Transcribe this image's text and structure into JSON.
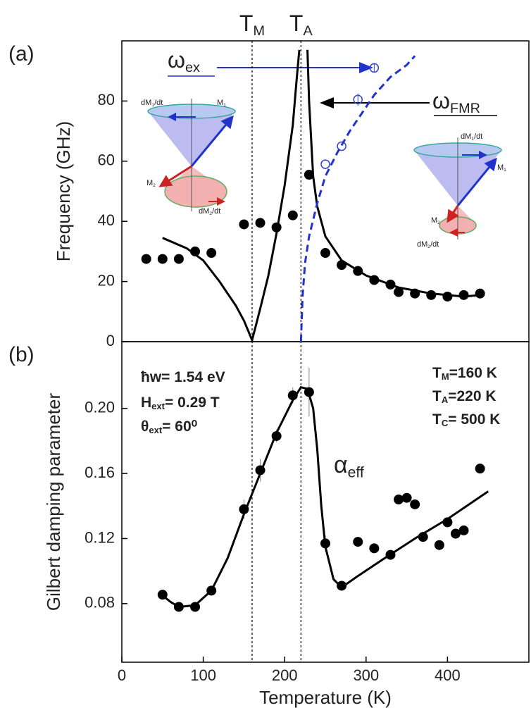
{
  "chart_data": [
    {
      "type": "line",
      "label": "(a)",
      "y_label": "Frequency (GHz)",
      "xlim": [
        0,
        500
      ],
      "ylim": [
        0,
        100
      ],
      "yticks": [
        0,
        20,
        40,
        60,
        80
      ],
      "vlines": [
        {
          "value": 160,
          "parts": [
            {
              "t": "T"
            },
            {
              "t": "M",
              "sub": true
            }
          ]
        },
        {
          "value": 220,
          "parts": [
            {
              "t": "T"
            },
            {
              "t": "A",
              "sub": true
            }
          ]
        }
      ],
      "series": [
        {
          "style": "dots",
          "color": "#000000",
          "x": [
            30,
            50,
            70,
            90,
            110,
            150,
            170,
            190,
            210,
            230,
            250,
            270,
            290,
            310,
            330,
            340,
            360,
            380,
            400,
            420,
            440
          ],
          "values": [
            27.5,
            27.5,
            27.5,
            30,
            29.5,
            39,
            39.5,
            38,
            42,
            55.5,
            29.5,
            25.5,
            23.5,
            20.5,
            19,
            16.5,
            16,
            15.5,
            15,
            15.5,
            16
          ]
        },
        {
          "style": "open",
          "color": "#3344cc",
          "x": [
            250,
            270,
            290,
            310
          ],
          "values": [
            59,
            65,
            80.5,
            91
          ],
          "errors": [
            null,
            null,
            2,
            1.5
          ]
        },
        {
          "style": "line",
          "color": "#000000",
          "x": [
            50,
            80,
            100,
            120,
            140,
            150,
            160,
            170,
            180,
            190,
            200,
            210,
            215,
            218,
            223,
            228,
            230,
            235,
            240,
            250,
            270,
            300,
            340,
            380,
            420,
            440
          ],
          "values": [
            34.5,
            31,
            27,
            20,
            12,
            7,
            0.5,
            11,
            22,
            36,
            52,
            72,
            88,
            97,
            null,
            97,
            80,
            55,
            45,
            35,
            27,
            22,
            18,
            16,
            15,
            15.5
          ]
        },
        {
          "style": "dashed",
          "color": "#2233cc",
          "x": [
            220,
            222,
            225,
            230,
            240,
            250,
            265,
            280,
            295,
            310,
            330,
            350,
            360
          ],
          "values": [
            0,
            15,
            26,
            35,
            46,
            55,
            63,
            70,
            76,
            82,
            88,
            92,
            95
          ]
        }
      ],
      "annotations": [
        {
          "color": "#2233cc",
          "parts": [
            {
              "t": "ω"
            },
            {
              "t": "ex",
              "sub": true
            }
          ]
        },
        {
          "color": "#000000",
          "parts": [
            {
              "t": "ω"
            },
            {
              "t": "FMR",
              "sub": true
            }
          ]
        },
        {
          "color": "#2233cc",
          "parts": [
            {
              "t": "dM"
            },
            {
              "t": "1",
              "sub": true
            },
            {
              "t": "/dt"
            }
          ]
        },
        {
          "color": "#2233cc",
          "parts": [
            {
              "t": "M"
            },
            {
              "t": "1",
              "sub": true
            }
          ]
        },
        {
          "color": "#cc2222",
          "parts": [
            {
              "t": "M"
            },
            {
              "t": "2",
              "sub": true
            }
          ]
        },
        {
          "color": "#cc2222",
          "parts": [
            {
              "t": "dM"
            },
            {
              "t": "2",
              "sub": true
            },
            {
              "t": "/dt"
            }
          ]
        },
        {
          "color": "#2233cc",
          "parts": [
            {
              "t": "dM"
            },
            {
              "t": "1",
              "sub": true
            },
            {
              "t": "/dt"
            }
          ]
        },
        {
          "color": "#2233cc",
          "parts": [
            {
              "t": "M"
            },
            {
              "t": "1",
              "sub": true
            }
          ]
        },
        {
          "color": "#cc2222",
          "parts": [
            {
              "t": "M"
            },
            {
              "t": "2",
              "sub": true
            }
          ]
        },
        {
          "color": "#cc2222",
          "parts": [
            {
              "t": "dM"
            },
            {
              "t": "2",
              "sub": true
            },
            {
              "t": "/dt"
            }
          ]
        }
      ]
    },
    {
      "type": "line",
      "label": "(b)",
      "y_label": "Gilbert damping parameter",
      "x_label": "Temperature (K)",
      "xlim": [
        0,
        500
      ],
      "ylim": [
        0.044,
        0.241
      ],
      "xticks": [
        0,
        100,
        200,
        300,
        400
      ],
      "yticks": [
        0.08,
        0.12,
        0.16,
        {
          "value": 0.2,
          "label": "0.20"
        }
      ],
      "series": [
        {
          "style": "dots",
          "color": "#000000",
          "x": [
            50,
            70,
            90,
            110,
            150,
            170,
            190,
            210,
            230,
            250,
            270,
            290,
            310,
            330,
            340,
            350,
            360,
            370,
            390,
            400,
            410,
            420,
            440
          ],
          "values": [
            0.0855,
            0.078,
            0.078,
            0.088,
            0.138,
            0.162,
            0.183,
            0.208,
            0.21,
            0.117,
            0.091,
            0.118,
            0.114,
            0.11,
            0.144,
            0.145,
            0.141,
            0.121,
            0.116,
            0.13,
            0.123,
            0.125,
            0.163
          ],
          "errors": [
            null,
            null,
            null,
            null,
            0.006,
            0.007,
            0.004,
            0.005,
            0.015,
            0.005,
            null,
            null,
            null,
            null,
            null,
            null,
            null,
            null,
            null,
            null,
            null,
            null,
            null
          ]
        },
        {
          "style": "line",
          "color": "#000000",
          "x": [
            50,
            60,
            70,
            90,
            110,
            130,
            150,
            170,
            190,
            210,
            220,
            228,
            235,
            240,
            245,
            250,
            260,
            270,
            290,
            320,
            360,
            400,
            450
          ],
          "values": [
            0.085,
            0.081,
            0.078,
            0.079,
            0.088,
            0.108,
            0.135,
            0.16,
            0.185,
            0.205,
            0.213,
            0.212,
            0.2,
            0.175,
            0.14,
            0.115,
            0.095,
            0.09,
            0.097,
            0.107,
            0.12,
            0.132,
            0.149
          ]
        }
      ],
      "annotations": [
        {
          "color": "#000000",
          "parts": [
            {
              "t": "ħw= 1.54 eV"
            }
          ]
        },
        {
          "color": "#000000",
          "parts": [
            {
              "t": "H"
            },
            {
              "t": "ext",
              "sub": true
            },
            {
              "t": "= 0.29 T"
            }
          ]
        },
        {
          "color": "#000000",
          "parts": [
            {
              "t": "θ"
            },
            {
              "t": "ext",
              "sub": true
            },
            {
              "t": "= 60⁰"
            }
          ]
        },
        {
          "color": "#000000",
          "parts": [
            {
              "t": "T"
            },
            {
              "t": "M",
              "sub": true
            },
            {
              "t": "=160 K"
            }
          ]
        },
        {
          "color": "#000000",
          "parts": [
            {
              "t": "T"
            },
            {
              "t": "A",
              "sub": true
            },
            {
              "t": "=220 K"
            }
          ]
        },
        {
          "color": "#000000",
          "parts": [
            {
              "t": "T"
            },
            {
              "t": "C",
              "sub": true
            },
            {
              "t": "= 500 K"
            }
          ]
        },
        {
          "color": "#000000",
          "parts": [
            {
              "t": "α"
            },
            {
              "t": "eff",
              "sub": true
            }
          ]
        }
      ]
    }
  ]
}
